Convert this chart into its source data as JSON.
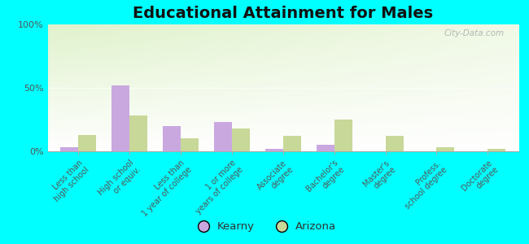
{
  "title": "Educational Attainment for Males",
  "categories": [
    "Less than\nhigh school",
    "High school\nor equiv.",
    "Less than\n1 year of college",
    "1 or more\nyears of college",
    "Associate\ndegree",
    "Bachelor's\ndegree",
    "Master's\ndegree",
    "Profess.\nschool degree",
    "Doctorate\ndegree"
  ],
  "kearny": [
    3,
    52,
    20,
    23,
    2,
    5,
    0,
    0,
    0
  ],
  "arizona": [
    13,
    28,
    10,
    18,
    12,
    25,
    12,
    3,
    2
  ],
  "kearny_color": "#c9a8e0",
  "arizona_color": "#c8d898",
  "bar_width": 0.35,
  "ylim": [
    0,
    100
  ],
  "yticks": [
    0,
    50,
    100
  ],
  "ytick_labels": [
    "0%",
    "50%",
    "100%"
  ],
  "bg_color": "#00ffff",
  "watermark": "City-Data.com",
  "legend_kearny": "Kearny",
  "legend_arizona": "Arizona",
  "title_fontsize": 14,
  "tick_fontsize": 7
}
